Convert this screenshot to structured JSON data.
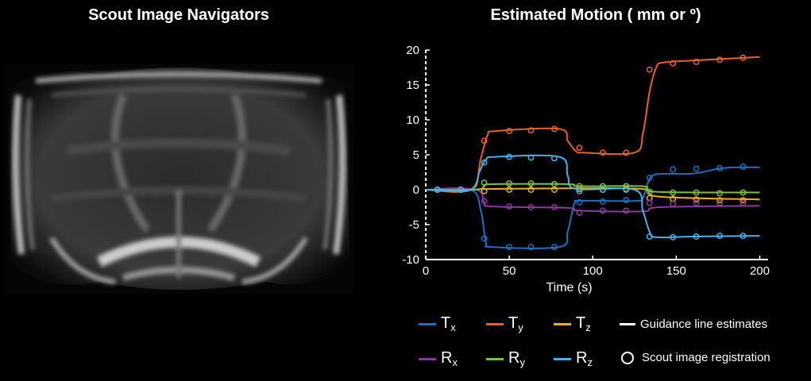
{
  "left_panel": {
    "title": "Scout Image Navigators"
  },
  "chart_data": {
    "type": "line",
    "title": "Estimated Motion ( mm or º)",
    "xlabel": "Time (s)",
    "ylabel": "",
    "xlim": [
      0,
      205
    ],
    "ylim": [
      -10,
      20
    ],
    "xticks": [
      0,
      50,
      100,
      150,
      200
    ],
    "yticks": [
      -10,
      -5,
      0,
      5,
      10,
      15,
      20
    ],
    "grid": false,
    "legend_placement": "below",
    "scout_times": [
      7,
      21,
      35,
      50,
      63,
      77,
      92,
      106,
      120,
      134,
      148,
      162,
      176,
      190
    ],
    "series": [
      {
        "name": "Tx",
        "label_main": "T",
        "label_sub": "x",
        "color": "#1f6fc0",
        "line": [
          [
            0,
            0
          ],
          [
            27,
            0
          ],
          [
            33,
            -3
          ],
          [
            36,
            -7.5
          ],
          [
            40,
            -8.2
          ],
          [
            80,
            -8.2
          ],
          [
            85,
            -6
          ],
          [
            89,
            -2
          ],
          [
            93,
            -1.6
          ],
          [
            125,
            -1.6
          ],
          [
            130,
            -1.2
          ],
          [
            133,
            1
          ],
          [
            138,
            2.2
          ],
          [
            160,
            2.3
          ],
          [
            175,
            3
          ],
          [
            185,
            3.2
          ],
          [
            200,
            3.2
          ]
        ],
        "points": [
          [
            7,
            0
          ],
          [
            21,
            0
          ],
          [
            35,
            -7
          ],
          [
            50,
            -8.2
          ],
          [
            63,
            -8.2
          ],
          [
            77,
            -8.2
          ],
          [
            92,
            -1.8
          ],
          [
            106,
            -1.7
          ],
          [
            120,
            -1.5
          ],
          [
            134,
            1.7
          ],
          [
            148,
            2.9
          ],
          [
            162,
            3.0
          ],
          [
            176,
            3.1
          ],
          [
            190,
            3.3
          ]
        ]
      },
      {
        "name": "Ty",
        "label_main": "T",
        "label_sub": "y",
        "color": "#e8602a",
        "line": [
          [
            0,
            0
          ],
          [
            27,
            0
          ],
          [
            33,
            4.5
          ],
          [
            37,
            7.8
          ],
          [
            42,
            8.4
          ],
          [
            80,
            8.7
          ],
          [
            85,
            7
          ],
          [
            90,
            5.5
          ],
          [
            95,
            5.3
          ],
          [
            125,
            5.3
          ],
          [
            130,
            8
          ],
          [
            134,
            14
          ],
          [
            138,
            17.5
          ],
          [
            142,
            18.2
          ],
          [
            160,
            18.5
          ],
          [
            200,
            19
          ]
        ],
        "points": [
          [
            7,
            0
          ],
          [
            21,
            0
          ],
          [
            35,
            7
          ],
          [
            50,
            8.4
          ],
          [
            63,
            8.5
          ],
          [
            77,
            8.7
          ],
          [
            92,
            6
          ],
          [
            106,
            5.3
          ],
          [
            120,
            5.3
          ],
          [
            134,
            17.2
          ],
          [
            148,
            18.1
          ],
          [
            162,
            18.3
          ],
          [
            176,
            18.6
          ],
          [
            190,
            18.9
          ]
        ]
      },
      {
        "name": "Tz",
        "label_main": "T",
        "label_sub": "z",
        "color": "#e8b020",
        "line": [
          [
            0,
            0
          ],
          [
            200,
            0.1
          ],
          [
            200,
            0.1
          ]
        ],
        "line_override": [
          [
            0,
            0
          ],
          [
            30,
            0
          ],
          [
            35,
            0.1
          ],
          [
            90,
            0.2
          ],
          [
            130,
            0.1
          ],
          [
            140,
            -1
          ],
          [
            200,
            -1.4
          ]
        ],
        "points": [
          [
            7,
            0
          ],
          [
            21,
            0
          ],
          [
            35,
            -0.2
          ],
          [
            50,
            0
          ],
          [
            63,
            0
          ],
          [
            77,
            0
          ],
          [
            92,
            0.1
          ],
          [
            106,
            0
          ],
          [
            120,
            0.1
          ],
          [
            134,
            -1.2
          ],
          [
            148,
            -1.3
          ],
          [
            162,
            -1.4
          ],
          [
            176,
            -1.5
          ],
          [
            190,
            -1.5
          ]
        ]
      },
      {
        "name": "Rx",
        "label_main": "R",
        "label_sub": "x",
        "color": "#8a3a9a",
        "line": [
          [
            0,
            0
          ],
          [
            30,
            0
          ],
          [
            35,
            -1.8
          ],
          [
            40,
            -2.4
          ],
          [
            85,
            -2.6
          ],
          [
            92,
            -3
          ],
          [
            130,
            -3.1
          ],
          [
            140,
            -2.5
          ],
          [
            200,
            -2.3
          ]
        ],
        "points": [
          [
            7,
            0
          ],
          [
            21,
            0
          ],
          [
            35,
            -1.6
          ],
          [
            50,
            -2.4
          ],
          [
            63,
            -2.5
          ],
          [
            77,
            -2.5
          ],
          [
            92,
            -3.3
          ],
          [
            106,
            -3.0
          ],
          [
            120,
            -3.0
          ],
          [
            134,
            -1.9
          ],
          [
            148,
            -2.0
          ],
          [
            162,
            -1.9
          ],
          [
            176,
            -1.9
          ],
          [
            190,
            -1.9
          ]
        ]
      },
      {
        "name": "Ry",
        "label_main": "R",
        "label_sub": "y",
        "color": "#80c040",
        "line": [
          [
            0,
            0
          ],
          [
            30,
            0
          ],
          [
            35,
            0.5
          ],
          [
            40,
            0.8
          ],
          [
            85,
            0.8
          ],
          [
            92,
            0.5
          ],
          [
            130,
            0.5
          ],
          [
            138,
            -0.3
          ],
          [
            200,
            -0.4
          ]
        ],
        "points": [
          [
            7,
            0
          ],
          [
            21,
            0
          ],
          [
            35,
            1.0
          ],
          [
            50,
            0.9
          ],
          [
            63,
            0.9
          ],
          [
            77,
            0.8
          ],
          [
            92,
            0.5
          ],
          [
            106,
            0.5
          ],
          [
            120,
            0.5
          ],
          [
            134,
            -0.3
          ],
          [
            148,
            -0.4
          ],
          [
            162,
            -0.4
          ],
          [
            176,
            -0.5
          ],
          [
            190,
            -0.4
          ]
        ]
      },
      {
        "name": "Rz",
        "label_main": "R",
        "label_sub": "z",
        "color": "#4ab0e8",
        "line": [
          [
            0,
            0
          ],
          [
            27,
            0
          ],
          [
            32,
            2.5
          ],
          [
            36,
            4.3
          ],
          [
            42,
            4.7
          ],
          [
            80,
            4.7
          ],
          [
            85,
            2
          ],
          [
            90,
            0.1
          ],
          [
            125,
            0
          ],
          [
            130,
            -3
          ],
          [
            134,
            -6
          ],
          [
            138,
            -6.8
          ],
          [
            160,
            -6.7
          ],
          [
            200,
            -6.6
          ]
        ],
        "points": [
          [
            7,
            0
          ],
          [
            21,
            0
          ],
          [
            35,
            3.9
          ],
          [
            50,
            4.7
          ],
          [
            63,
            4.6
          ],
          [
            77,
            4.5
          ],
          [
            92,
            -0.2
          ],
          [
            106,
            0
          ],
          [
            120,
            0
          ],
          [
            134,
            -6.7
          ],
          [
            148,
            -6.8
          ],
          [
            162,
            -6.7
          ],
          [
            176,
            -6.6
          ],
          [
            190,
            -6.6
          ]
        ]
      }
    ],
    "legend_extra": {
      "line_label": "Guidance line estimates",
      "circle_label": "Scout image registration"
    }
  }
}
